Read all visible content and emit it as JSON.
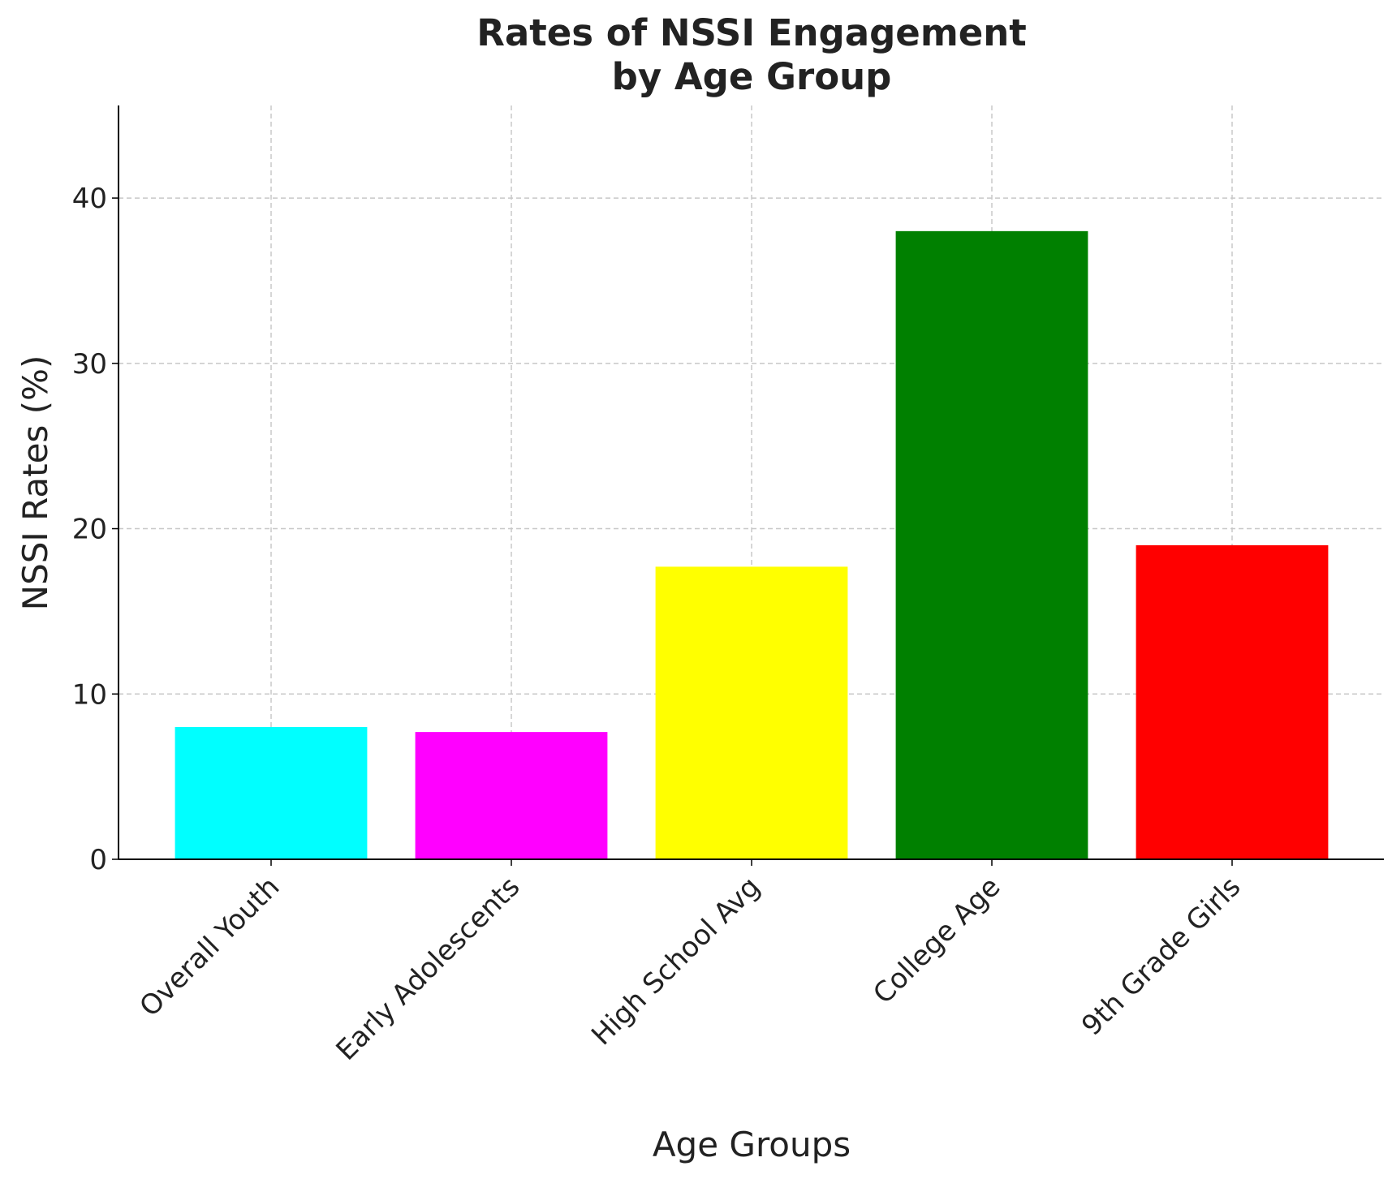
{
  "chart_data": {
    "type": "bar",
    "title": "Rates of NSSI Engagement\nby Age Group",
    "x_label": "Age Groups",
    "y_label": "NSSI Rates (%)",
    "categories": [
      "Overall Youth",
      "Early Adolescents",
      "High School Avg",
      "College Age",
      "9th Grade Girls"
    ],
    "values": [
      8,
      7.7,
      17.7,
      38,
      19
    ],
    "colors": [
      "#00ffff",
      "#ff00ff",
      "#ffff00",
      "#008000",
      "#ff0000"
    ],
    "ylim": [
      0,
      45.6
    ],
    "yticks": [
      0,
      10,
      20,
      30,
      40
    ],
    "grid": true
  }
}
